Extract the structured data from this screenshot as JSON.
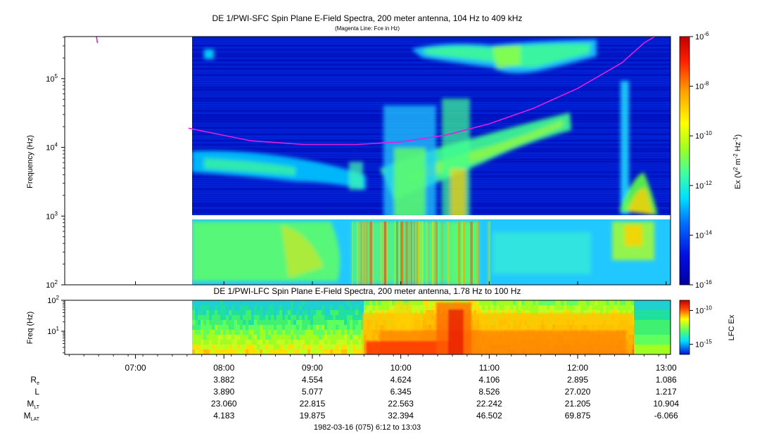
{
  "title": "DE 1/PWI-SFC  Spin Plane E-Field Spectra, 200 meter antenna, 104 Hz to 409 kHz",
  "subtitle": "(Magenta Line: Fce in Hz)",
  "colors": {
    "background_low": "#0010c0",
    "magenta_line": "#e020e0",
    "gap_line": "#ffffff",
    "frame": "#000000"
  },
  "chart_data": [
    {
      "type": "heatmap",
      "title": "DE 1/PWI-SFC  Spin Plane E-Field Spectra, 200 meter antenna, 104 Hz to 409 kHz",
      "subtitle": "(Magenta Line: Fce in Hz)",
      "xlabel": "",
      "ylabel": "Frequency (Hz)",
      "yscale": "log",
      "xlim_hours": [
        6.2,
        13.05
      ],
      "data_start_hours": 7.6,
      "ylim": [
        100,
        409000
      ],
      "y_ticks": [
        {
          "value": 100,
          "base": "10",
          "exp": "2"
        },
        {
          "value": 1000,
          "base": "10",
          "exp": "3"
        },
        {
          "value": 10000,
          "base": "10",
          "exp": "4"
        },
        {
          "value": 100000,
          "base": "10",
          "exp": "5"
        }
      ],
      "gap_frequency_hz": 920,
      "colorbar": {
        "label": "Ex (V² m⁻² Hz⁻¹)",
        "label_parts": [
          "Ex (V",
          "2",
          " m",
          "-2",
          " Hz",
          "-1",
          ")"
        ],
        "scale": "log",
        "range": [
          1e-16,
          1e-06
        ],
        "ticks": [
          {
            "value": 1e-06,
            "base": "10",
            "exp": "-6"
          },
          {
            "value": 1e-08,
            "base": "10",
            "exp": "-8"
          },
          {
            "value": 1e-10,
            "base": "10",
            "exp": "-10"
          },
          {
            "value": 1e-12,
            "base": "10",
            "exp": "-12"
          },
          {
            "value": 1e-14,
            "base": "10",
            "exp": "-14"
          },
          {
            "value": 1e-16,
            "base": "10",
            "exp": "-16"
          }
        ]
      },
      "magenta_line_fce": {
        "name": "Fce",
        "points": [
          {
            "t": 6.55,
            "f": 480000
          },
          {
            "t": 6.57,
            "f": 330000
          },
          {
            "t": 7.6,
            "f": 19000
          },
          {
            "t": 8.3,
            "f": 12500
          },
          {
            "t": 8.9,
            "f": 11000
          },
          {
            "t": 9.5,
            "f": 11000
          },
          {
            "t": 10.0,
            "f": 12000
          },
          {
            "t": 10.5,
            "f": 15000
          },
          {
            "t": 11.0,
            "f": 22000
          },
          {
            "t": 11.5,
            "f": 37000
          },
          {
            "t": 12.0,
            "f": 72000
          },
          {
            "t": 12.5,
            "f": 170000
          },
          {
            "t": 12.75,
            "f": 330000
          },
          {
            "t": 12.9,
            "f": 430000
          }
        ]
      }
    },
    {
      "type": "heatmap",
      "title": "DE 1/PWI-LFC  Spin Plane E-Field Spectra, 200 meter antenna, 1.78 Hz to 100 Hz",
      "xlabel": "",
      "ylabel": "Freq (Hz)",
      "yscale": "log",
      "ylim": [
        1.78,
        100
      ],
      "y_ticks": [
        {
          "value": 10,
          "base": "10",
          "exp": "1"
        },
        {
          "value": 100,
          "base": "10",
          "exp": "2"
        }
      ],
      "colorbar": {
        "label": "LFC Ex",
        "scale": "log",
        "ticks": [
          {
            "value": 1e-10,
            "base": "10",
            "exp": "-10"
          },
          {
            "value": 1e-15,
            "base": "10",
            "exp": "-15"
          }
        ]
      }
    }
  ],
  "time_axis": {
    "ticks": [
      {
        "t": 7.0,
        "label": "07:00"
      },
      {
        "t": 8.0,
        "label": "08:00"
      },
      {
        "t": 9.0,
        "label": "09:00"
      },
      {
        "t": 10.0,
        "label": "10:00"
      },
      {
        "t": 11.0,
        "label": "11:00"
      },
      {
        "t": 12.0,
        "label": "12:00"
      },
      {
        "t": 13.0,
        "label": "13:00"
      }
    ]
  },
  "ephemeris": {
    "rows": [
      {
        "label": "R",
        "sub": "e",
        "values": [
          "3.882",
          "4.554",
          "4.624",
          "4.106",
          "2.895",
          "1.086"
        ]
      },
      {
        "label": "L",
        "sub": "",
        "values": [
          "3.890",
          "5.077",
          "6.345",
          "8.526",
          "27.020",
          "1.217"
        ]
      },
      {
        "label": "M",
        "sub": "LT",
        "values": [
          "23.060",
          "22.815",
          "22.563",
          "22.242",
          "21.205",
          "10.904"
        ]
      },
      {
        "label": "M",
        "sub": "LAT",
        "values": [
          "4.183",
          "19.875",
          "32.394",
          "46.502",
          "69.875",
          "-6.066"
        ]
      }
    ],
    "times": [
      8.0,
      9.0,
      10.0,
      11.0,
      12.0,
      13.0
    ]
  },
  "footer": "1982-03-16 (075) 6:12 to 13:03"
}
